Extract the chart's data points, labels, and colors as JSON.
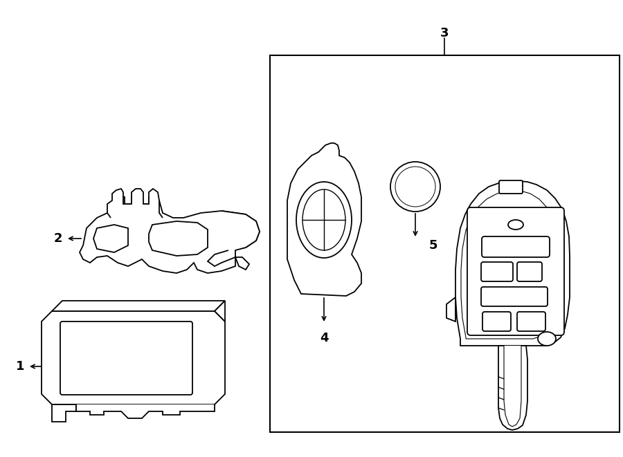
{
  "title": "",
  "background_color": "#ffffff",
  "line_color": "#000000",
  "fig_width": 9.0,
  "fig_height": 6.61,
  "dpi": 100
}
